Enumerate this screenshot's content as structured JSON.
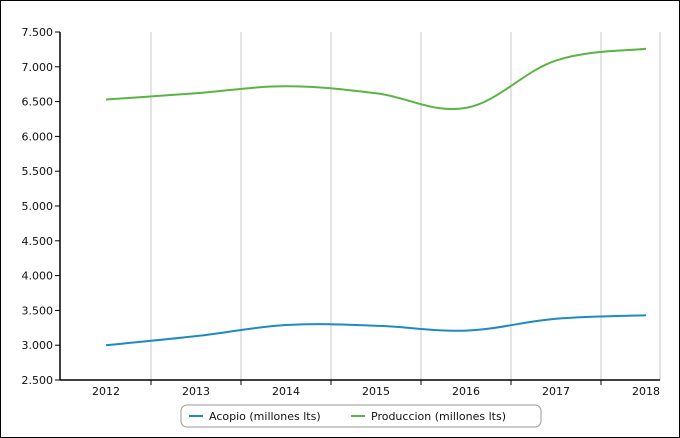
{
  "chart_data": {
    "type": "line",
    "categories": [
      "2012",
      "2013",
      "2014",
      "2015",
      "2016",
      "2017",
      "2018"
    ],
    "ylim": [
      2500,
      7500
    ],
    "y_ticks": [
      2500,
      3000,
      3500,
      4000,
      4500,
      5000,
      5500,
      6000,
      6500,
      7000,
      7500
    ],
    "y_tick_labels": [
      "2.500",
      "3.000",
      "3.500",
      "4.000",
      "4.500",
      "5.000",
      "5.500",
      "6.000",
      "6.500",
      "7.000",
      "7.500"
    ],
    "grid": "vertical",
    "legend_position": "bottom",
    "series": [
      {
        "name": "Acopio (millones lts)",
        "values": [
          3000,
          3130,
          3290,
          3280,
          3210,
          3380,
          3430
        ],
        "color": "#1f8ac0"
      },
      {
        "name": "Produccion (millones lts)",
        "values": [
          6530,
          6620,
          6720,
          6620,
          6410,
          7090,
          7260
        ],
        "color": "#5ab445"
      }
    ]
  }
}
